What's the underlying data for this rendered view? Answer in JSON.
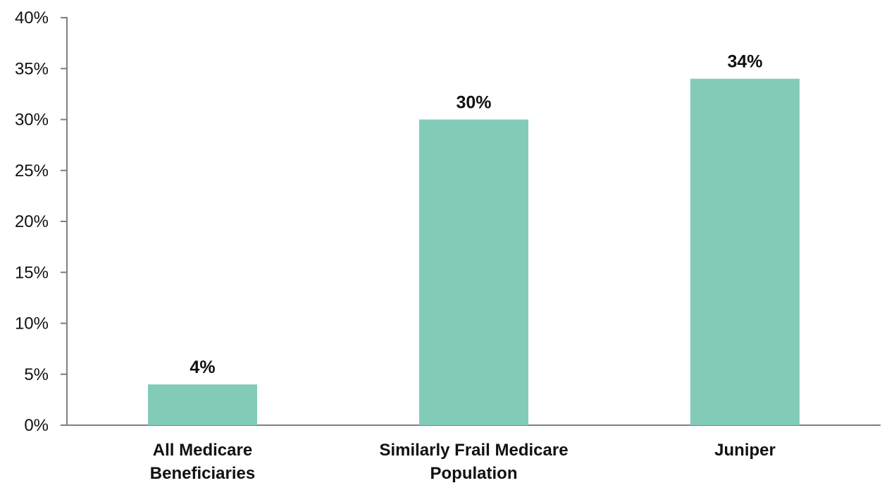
{
  "chart_data": {
    "type": "bar",
    "title": "",
    "xlabel": "",
    "ylabel": "",
    "categories": [
      [
        "All Medicare",
        "Beneficiaries"
      ],
      [
        "Similarly Frail Medicare",
        "Population"
      ],
      [
        "Juniper"
      ]
    ],
    "values": [
      4,
      30,
      34
    ],
    "data_labels": [
      "4%",
      "30%",
      "34%"
    ],
    "ylim": [
      0,
      40
    ],
    "yticks": [
      0,
      5,
      10,
      15,
      20,
      25,
      30,
      35,
      40
    ],
    "ytick_labels": [
      "0%",
      "5%",
      "10%",
      "15%",
      "20%",
      "25%",
      "30%",
      "35%",
      "40%"
    ],
    "grid": false,
    "legend": "none",
    "bar_color": "#82cbb7",
    "axis_color": "#7f7f7f"
  }
}
